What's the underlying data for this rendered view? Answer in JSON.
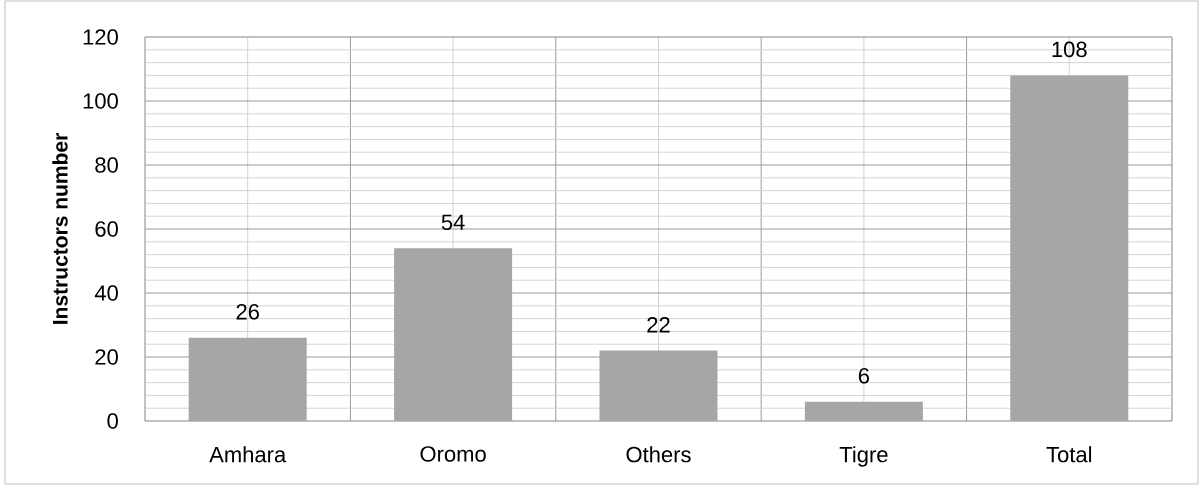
{
  "chart_data": {
    "type": "bar",
    "ylabel": "Instructors number",
    "categories": [
      "Amhara",
      "Oromo",
      "Others",
      "Tigre",
      "Total"
    ],
    "values": [
      26,
      54,
      22,
      6,
      108
    ],
    "color": "#a6a6a6",
    "ylim": [
      0,
      120
    ],
    "yticks": [
      0,
      20,
      40,
      60,
      80,
      100,
      120
    ],
    "grid": true,
    "data_labels": true
  }
}
